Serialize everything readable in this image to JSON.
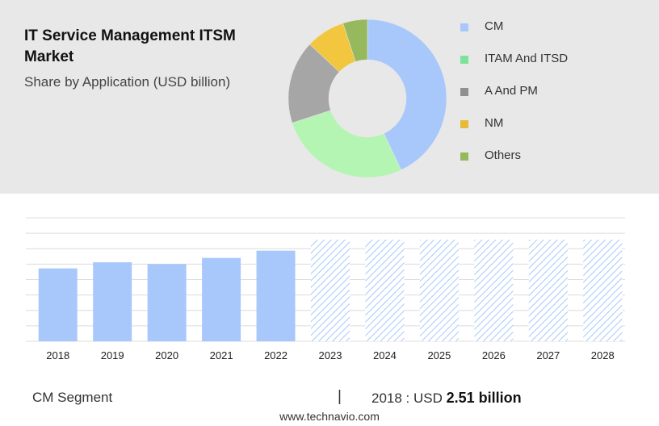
{
  "header": {
    "title": "IT Service Management ITSM Market",
    "subtitle": "Share by Application (USD billion)"
  },
  "colors": {
    "CM": "#a8c8fb",
    "ITAM And ITSD": "#b4f5b4",
    "A And PM": "#a6a6a6",
    "NM": "#f3c63f",
    "Others": "#97b95d",
    "legend_ITAM And ITSD": "#7ee39a",
    "legend_A And PM": "#909090",
    "legend_NM": "#e6bb3a",
    "legend_Others": "#97b95d",
    "forecast_hatch": "#a8c8fb"
  },
  "chart_data": [
    {
      "type": "pie",
      "subtype": "donut",
      "labels": [
        "CM",
        "ITAM And ITSD",
        "A And PM",
        "NM",
        "Others"
      ],
      "values": [
        43,
        27,
        17,
        8,
        5
      ],
      "legend_position": "right"
    },
    {
      "type": "bar",
      "categories": [
        "2018",
        "2019",
        "2020",
        "2021",
        "2022",
        "2023",
        "2024",
        "2025",
        "2026",
        "2027",
        "2028"
      ],
      "values": [
        2.51,
        2.72,
        2.66,
        2.87,
        3.12,
        3.5,
        3.5,
        3.5,
        3.5,
        3.5,
        3.5
      ],
      "forecast_from": "2023",
      "ylim": [
        0,
        4.25
      ],
      "grid": true
    }
  ],
  "footer": {
    "segment_label": "CM Segment",
    "separator": "|",
    "year_text": "2018 : USD",
    "value_text": "2.51 billion",
    "website": "www.technavio.com"
  }
}
